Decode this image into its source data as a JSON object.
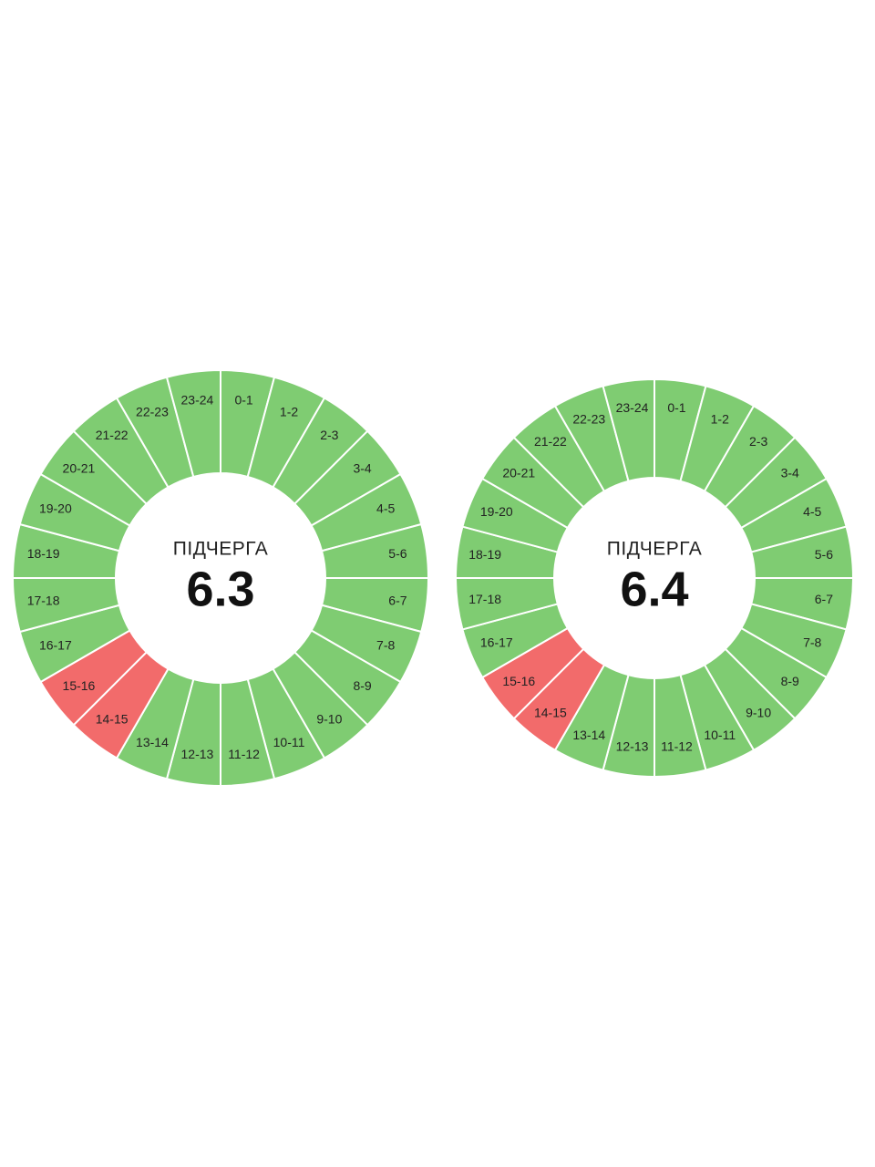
{
  "wheels": [
    {
      "caption": "ПІДЧЕРГА",
      "number": "6.3",
      "segments": [
        {
          "label": "0-1",
          "color": "#7fcc72"
        },
        {
          "label": "1-2",
          "color": "#7fcc72"
        },
        {
          "label": "2-3",
          "color": "#7fcc72"
        },
        {
          "label": "3-4",
          "color": "#7fcc72"
        },
        {
          "label": "4-5",
          "color": "#7fcc72"
        },
        {
          "label": "5-6",
          "color": "#7fcc72"
        },
        {
          "label": "6-7",
          "color": "#7fcc72"
        },
        {
          "label": "7-8",
          "color": "#7fcc72"
        },
        {
          "label": "8-9",
          "color": "#7fcc72"
        },
        {
          "label": "9-10",
          "color": "#7fcc72"
        },
        {
          "label": "10-11",
          "color": "#7fcc72"
        },
        {
          "label": "11-12",
          "color": "#7fcc72"
        },
        {
          "label": "12-13",
          "color": "#7fcc72"
        },
        {
          "label": "13-14",
          "color": "#7fcc72"
        },
        {
          "label": "14-15",
          "color": "#f26b6b"
        },
        {
          "label": "15-16",
          "color": "#f26b6b"
        },
        {
          "label": "16-17",
          "color": "#7fcc72"
        },
        {
          "label": "17-18",
          "color": "#7fcc72"
        },
        {
          "label": "18-19",
          "color": "#7fcc72"
        },
        {
          "label": "19-20",
          "color": "#7fcc72"
        },
        {
          "label": "20-21",
          "color": "#7fcc72"
        },
        {
          "label": "21-22",
          "color": "#7fcc72"
        },
        {
          "label": "22-23",
          "color": "#7fcc72"
        },
        {
          "label": "23-24",
          "color": "#7fcc72"
        }
      ]
    },
    {
      "caption": "ПІДЧЕРГА",
      "number": "6.4",
      "segments": [
        {
          "label": "0-1",
          "color": "#7fcc72"
        },
        {
          "label": "1-2",
          "color": "#7fcc72"
        },
        {
          "label": "2-3",
          "color": "#7fcc72"
        },
        {
          "label": "3-4",
          "color": "#7fcc72"
        },
        {
          "label": "4-5",
          "color": "#7fcc72"
        },
        {
          "label": "5-6",
          "color": "#7fcc72"
        },
        {
          "label": "6-7",
          "color": "#7fcc72"
        },
        {
          "label": "7-8",
          "color": "#7fcc72"
        },
        {
          "label": "8-9",
          "color": "#7fcc72"
        },
        {
          "label": "9-10",
          "color": "#7fcc72"
        },
        {
          "label": "10-11",
          "color": "#7fcc72"
        },
        {
          "label": "11-12",
          "color": "#7fcc72"
        },
        {
          "label": "12-13",
          "color": "#7fcc72"
        },
        {
          "label": "13-14",
          "color": "#7fcc72"
        },
        {
          "label": "14-15",
          "color": "#f26b6b"
        },
        {
          "label": "15-16",
          "color": "#f26b6b"
        },
        {
          "label": "16-17",
          "color": "#7fcc72"
        },
        {
          "label": "17-18",
          "color": "#7fcc72"
        },
        {
          "label": "18-19",
          "color": "#7fcc72"
        },
        {
          "label": "19-20",
          "color": "#7fcc72"
        },
        {
          "label": "20-21",
          "color": "#7fcc72"
        },
        {
          "label": "21-22",
          "color": "#7fcc72"
        },
        {
          "label": "22-23",
          "color": "#7fcc72"
        },
        {
          "label": "23-24",
          "color": "#7fcc72"
        }
      ]
    }
  ]
}
